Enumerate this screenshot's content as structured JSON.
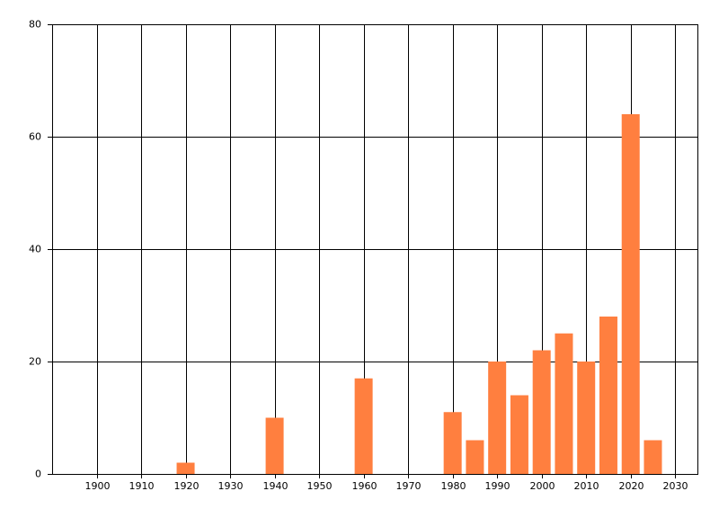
{
  "chart_data": {
    "type": "bar",
    "color": "#ff7f3f",
    "x": [
      1920,
      1940,
      1960,
      1980,
      1985,
      1990,
      1995,
      2000,
      2005,
      2010,
      2015,
      2020,
      2025
    ],
    "values": [
      2,
      10,
      17,
      11,
      6,
      20,
      14,
      22,
      25,
      20,
      28,
      64,
      6
    ],
    "xlim": [
      1890,
      2035
    ],
    "xticks": [
      1900,
      1910,
      1920,
      1930,
      1940,
      1950,
      1960,
      1970,
      1980,
      1990,
      2000,
      2010,
      2020,
      2030
    ],
    "ylim": [
      0,
      80
    ],
    "yticks": [
      0,
      20,
      40,
      60,
      80
    ],
    "grid": true
  }
}
